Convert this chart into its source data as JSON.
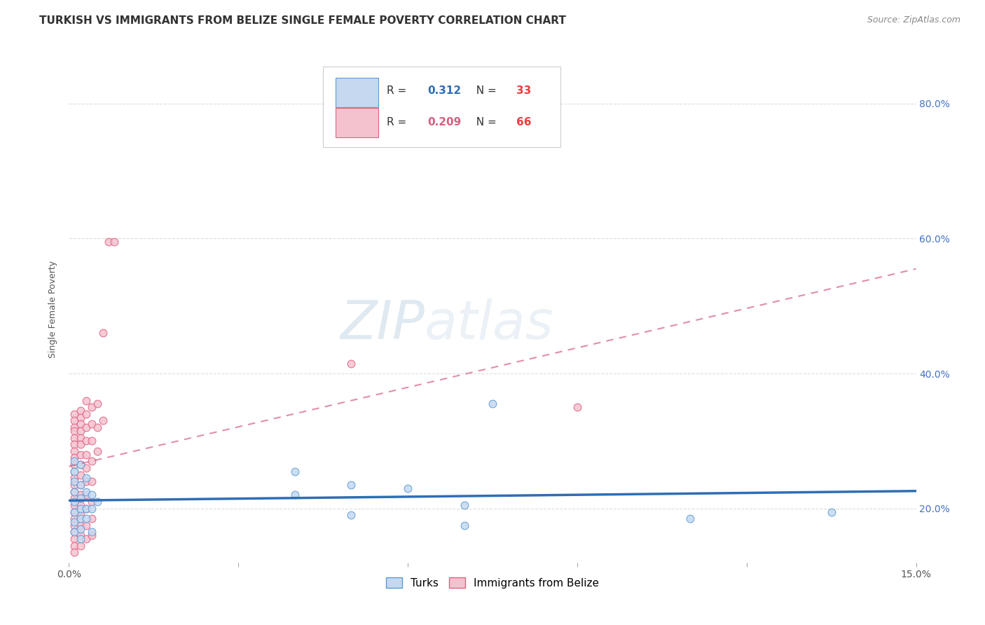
{
  "title": "TURKISH VS IMMIGRANTS FROM BELIZE SINGLE FEMALE POVERTY CORRELATION CHART",
  "source": "Source: ZipAtlas.com",
  "ylabel": "Single Female Poverty",
  "xlim": [
    0.0,
    0.15
  ],
  "ylim": [
    0.12,
    0.87
  ],
  "yticks": [
    0.2,
    0.4,
    0.6,
    0.8
  ],
  "yticklabels": [
    "20.0%",
    "40.0%",
    "60.0%",
    "80.0%"
  ],
  "watermark_text": "ZIPatlas",
  "turks_color": "#c5d8f0",
  "turks_edge_color": "#5b9bd5",
  "belize_color": "#f4c2cf",
  "belize_edge_color": "#e06080",
  "turks_line_color": "#2e6eb5",
  "belize_line_color": "#d46080",
  "turks_R": 0.312,
  "turks_N": 33,
  "belize_R": 0.209,
  "belize_N": 66,
  "turks_data": [
    [
      0.001,
      0.27
    ],
    [
      0.001,
      0.255
    ],
    [
      0.001,
      0.24
    ],
    [
      0.001,
      0.225
    ],
    [
      0.001,
      0.21
    ],
    [
      0.001,
      0.195
    ],
    [
      0.001,
      0.18
    ],
    [
      0.001,
      0.165
    ],
    [
      0.002,
      0.265
    ],
    [
      0.002,
      0.235
    ],
    [
      0.002,
      0.215
    ],
    [
      0.002,
      0.2
    ],
    [
      0.002,
      0.185
    ],
    [
      0.002,
      0.17
    ],
    [
      0.002,
      0.155
    ],
    [
      0.003,
      0.245
    ],
    [
      0.003,
      0.225
    ],
    [
      0.003,
      0.2
    ],
    [
      0.003,
      0.185
    ],
    [
      0.004,
      0.22
    ],
    [
      0.004,
      0.2
    ],
    [
      0.004,
      0.165
    ],
    [
      0.005,
      0.21
    ],
    [
      0.04,
      0.255
    ],
    [
      0.04,
      0.22
    ],
    [
      0.05,
      0.235
    ],
    [
      0.05,
      0.19
    ],
    [
      0.06,
      0.23
    ],
    [
      0.07,
      0.205
    ],
    [
      0.07,
      0.175
    ],
    [
      0.075,
      0.355
    ],
    [
      0.11,
      0.185
    ],
    [
      0.135,
      0.195
    ]
  ],
  "belize_data": [
    [
      0.001,
      0.34
    ],
    [
      0.001,
      0.33
    ],
    [
      0.001,
      0.32
    ],
    [
      0.001,
      0.315
    ],
    [
      0.001,
      0.305
    ],
    [
      0.001,
      0.295
    ],
    [
      0.001,
      0.285
    ],
    [
      0.001,
      0.275
    ],
    [
      0.001,
      0.265
    ],
    [
      0.001,
      0.255
    ],
    [
      0.001,
      0.245
    ],
    [
      0.001,
      0.235
    ],
    [
      0.001,
      0.225
    ],
    [
      0.001,
      0.215
    ],
    [
      0.001,
      0.205
    ],
    [
      0.001,
      0.195
    ],
    [
      0.001,
      0.185
    ],
    [
      0.001,
      0.175
    ],
    [
      0.001,
      0.165
    ],
    [
      0.001,
      0.155
    ],
    [
      0.001,
      0.145
    ],
    [
      0.001,
      0.135
    ],
    [
      0.002,
      0.345
    ],
    [
      0.002,
      0.335
    ],
    [
      0.002,
      0.325
    ],
    [
      0.002,
      0.315
    ],
    [
      0.002,
      0.305
    ],
    [
      0.002,
      0.295
    ],
    [
      0.002,
      0.28
    ],
    [
      0.002,
      0.265
    ],
    [
      0.002,
      0.25
    ],
    [
      0.002,
      0.235
    ],
    [
      0.002,
      0.22
    ],
    [
      0.002,
      0.205
    ],
    [
      0.002,
      0.19
    ],
    [
      0.002,
      0.175
    ],
    [
      0.002,
      0.16
    ],
    [
      0.002,
      0.145
    ],
    [
      0.003,
      0.36
    ],
    [
      0.003,
      0.34
    ],
    [
      0.003,
      0.32
    ],
    [
      0.003,
      0.3
    ],
    [
      0.003,
      0.28
    ],
    [
      0.003,
      0.26
    ],
    [
      0.003,
      0.24
    ],
    [
      0.003,
      0.22
    ],
    [
      0.003,
      0.2
    ],
    [
      0.003,
      0.175
    ],
    [
      0.003,
      0.155
    ],
    [
      0.004,
      0.35
    ],
    [
      0.004,
      0.325
    ],
    [
      0.004,
      0.3
    ],
    [
      0.004,
      0.27
    ],
    [
      0.004,
      0.24
    ],
    [
      0.004,
      0.21
    ],
    [
      0.004,
      0.185
    ],
    [
      0.004,
      0.16
    ],
    [
      0.005,
      0.355
    ],
    [
      0.005,
      0.32
    ],
    [
      0.005,
      0.285
    ],
    [
      0.006,
      0.46
    ],
    [
      0.006,
      0.33
    ],
    [
      0.007,
      0.595
    ],
    [
      0.008,
      0.595
    ],
    [
      0.05,
      0.415
    ],
    [
      0.09,
      0.35
    ]
  ],
  "title_fontsize": 11,
  "axis_label_fontsize": 9,
  "tick_fontsize": 10,
  "source_fontsize": 9,
  "marker_size": 60,
  "background_color": "#ffffff",
  "grid_color": "#dddddd",
  "right_axis_color": "#4472c4"
}
